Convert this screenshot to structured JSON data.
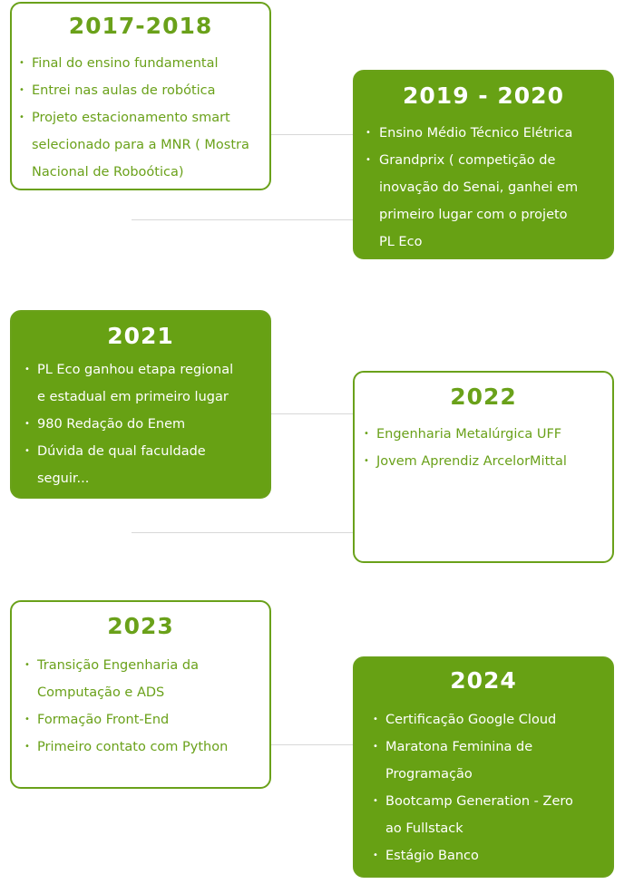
{
  "colors": {
    "accent": "#6aa11a",
    "filled": "#67a114",
    "connector": "#d8d8d8"
  },
  "cards": [
    {
      "year": "2017-2018",
      "items": [
        "Final do ensino fundamental",
        "Entrei nas aulas de robótica",
        "Projeto estacionamento smart",
        "selecionado para a MNR ( Mostra",
        "Nacional de Roboótica)"
      ]
    },
    {
      "year": "2019 - 2020",
      "items": [
        "Ensino Médio Técnico Elétrica",
        "Grandprix ( competição de",
        "inovação do Senai, ganhei em",
        "primeiro lugar com o projeto",
        "PL Eco"
      ]
    },
    {
      "year": "2021",
      "items": [
        "PL Eco ganhou etapa regional",
        "e estadual em primeiro lugar",
        "980 Redação do Enem",
        "Dúvida de qual faculdade",
        "seguir..."
      ]
    },
    {
      "year": "2022",
      "items": [
        "Engenharia Metalúrgica UFF",
        "Jovem Aprendiz ArcelorMittal"
      ]
    },
    {
      "year": "2023",
      "items": [
        "Transição Engenharia da",
        "Computação e ADS",
        "Formação Front-End",
        "Primeiro contato com Python"
      ]
    },
    {
      "year": "2024",
      "items": [
        "Certificação Google Cloud",
        "Maratona Feminina de",
        "Programação",
        "Bootcamp Generation - Zero",
        "ao Fullstack",
        "Estágio Banco"
      ]
    }
  ]
}
